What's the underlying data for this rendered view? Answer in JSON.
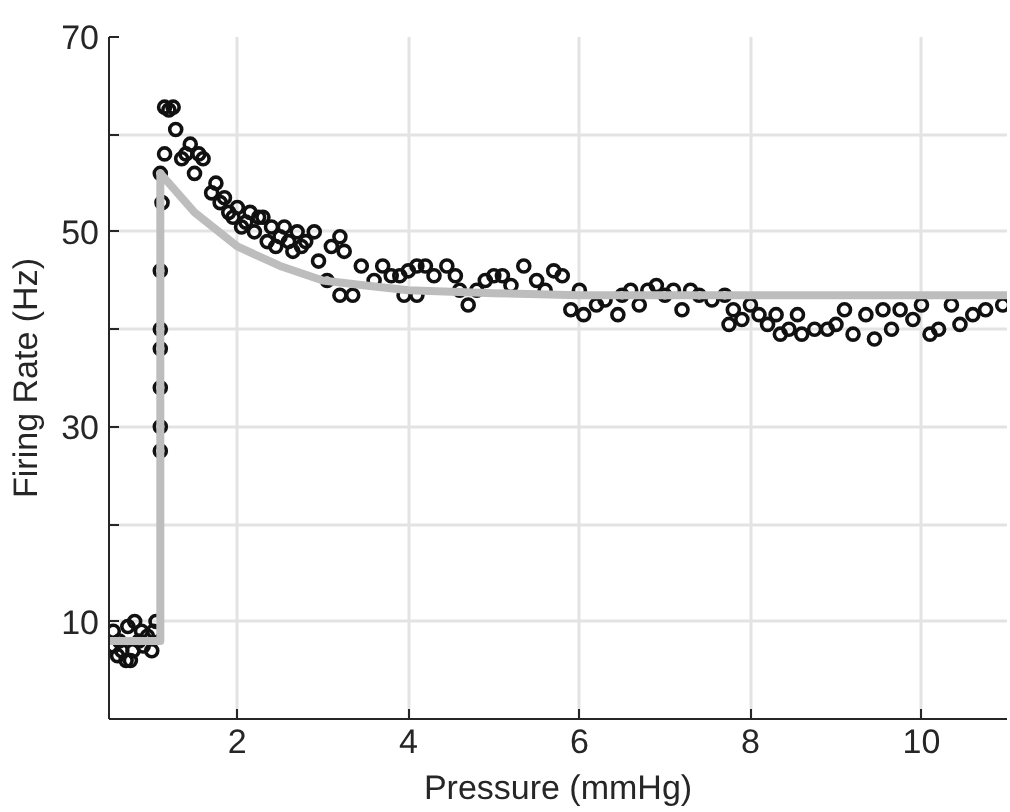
{
  "chart_data": {
    "type": "scatter",
    "xlabel": "Pressure (mmHg)",
    "ylabel": "Firing Rate (Hz)",
    "xlim": [
      0.5,
      11
    ],
    "ylim": [
      0,
      70
    ],
    "xticks": [
      2,
      4,
      6,
      8,
      10
    ],
    "yticks": [
      {
        "value": 0,
        "label": null
      },
      10,
      {
        "value": 20,
        "label": null
      },
      30,
      {
        "value": 40,
        "label": null
      },
      50,
      {
        "value": 60,
        "label": null
      },
      70
    ],
    "grid": true,
    "series": [
      {
        "marker": "circle",
        "color": "#111111",
        "x": [
          0.55,
          0.55,
          0.6,
          0.62,
          0.65,
          0.7,
          0.72,
          0.75,
          0.78,
          0.8,
          0.85,
          0.88,
          0.9,
          0.95,
          1.0,
          1.02,
          1.05,
          1.1,
          1.1,
          1.1,
          1.1,
          1.1,
          1.1,
          1.1,
          1.12,
          1.15,
          1.15,
          1.2,
          1.25,
          1.28,
          1.35,
          1.4,
          1.45,
          1.5,
          1.55,
          1.6,
          1.7,
          1.75,
          1.8,
          1.85,
          1.9,
          1.95,
          2.0,
          2.05,
          2.1,
          2.15,
          2.2,
          2.25,
          2.3,
          2.35,
          2.4,
          2.45,
          2.5,
          2.55,
          2.6,
          2.65,
          2.7,
          2.75,
          2.8,
          2.9,
          2.95,
          3.05,
          3.1,
          3.2,
          3.25,
          3.2,
          3.35,
          3.45,
          3.6,
          3.7,
          3.8,
          3.9,
          3.95,
          4.0,
          4.1,
          4.2,
          4.1,
          4.3,
          4.45,
          4.55,
          4.6,
          4.7,
          4.8,
          4.9,
          5.0,
          5.1,
          5.2,
          5.35,
          5.5,
          5.6,
          5.7,
          5.8,
          5.9,
          6.0,
          6.05,
          6.2,
          6.3,
          6.45,
          6.5,
          6.6,
          6.7,
          6.8,
          6.9,
          7.0,
          7.1,
          7.2,
          7.3,
          7.4,
          7.55,
          7.7,
          7.75,
          7.8,
          7.9,
          8.0,
          8.1,
          8.2,
          8.3,
          8.35,
          8.45,
          8.55,
          8.6,
          8.75,
          8.9,
          9.0,
          9.1,
          9.2,
          9.35,
          9.45,
          9.55,
          9.65,
          9.75,
          9.9,
          10.0,
          10.1,
          10.2,
          10.35,
          10.45,
          10.6,
          10.75,
          10.95
        ],
        "values": [
          9,
          7.5,
          6.5,
          8,
          7,
          6,
          9.5,
          6,
          7,
          10,
          8,
          9,
          7.5,
          8.5,
          7,
          9,
          10,
          27.5,
          30,
          34,
          38,
          40,
          46,
          56,
          53,
          58,
          62.8,
          62.5,
          62.8,
          60.5,
          57.5,
          58,
          59,
          56,
          58,
          57.5,
          54,
          55,
          53,
          53.5,
          52,
          51.5,
          52.5,
          50.5,
          51,
          52,
          50,
          51.5,
          51.5,
          49,
          50.5,
          48.5,
          49.5,
          50.5,
          49,
          48,
          50,
          48.5,
          49,
          50,
          47,
          45,
          48.5,
          49.5,
          48,
          43.5,
          43.5,
          46.5,
          45,
          46.5,
          45.5,
          45.5,
          43.5,
          46,
          46.5,
          46.5,
          43.5,
          45.5,
          46.5,
          45.5,
          44,
          42.5,
          44,
          45,
          45.5,
          45.5,
          44.5,
          46.5,
          45,
          44,
          46,
          45.5,
          42,
          44,
          41.5,
          42.5,
          43,
          41.5,
          43.5,
          44,
          42.5,
          44,
          44.5,
          43.5,
          44,
          42,
          44,
          43.5,
          43,
          43.5,
          40.5,
          42,
          41,
          42.5,
          41.5,
          40.5,
          41.5,
          39.5,
          40,
          41.5,
          39.5,
          40,
          40,
          40.5,
          42,
          39.5,
          41.5,
          39,
          42,
          40,
          42,
          41,
          42.5,
          39.5,
          40,
          42.5,
          40.5,
          41.5,
          42,
          42.5
        ]
      },
      {
        "type": "line",
        "marker": "none",
        "color": "#bdbdbd",
        "x": [
          0.5,
          1.1,
          1.1,
          1.2,
          1.5,
          2,
          2.5,
          3,
          3.5,
          4,
          5,
          6,
          8,
          11
        ],
        "values": [
          8,
          8,
          56,
          55,
          52,
          48.5,
          46.5,
          45,
          44.5,
          44,
          43.7,
          43.5,
          43.5,
          43.5
        ]
      }
    ]
  }
}
